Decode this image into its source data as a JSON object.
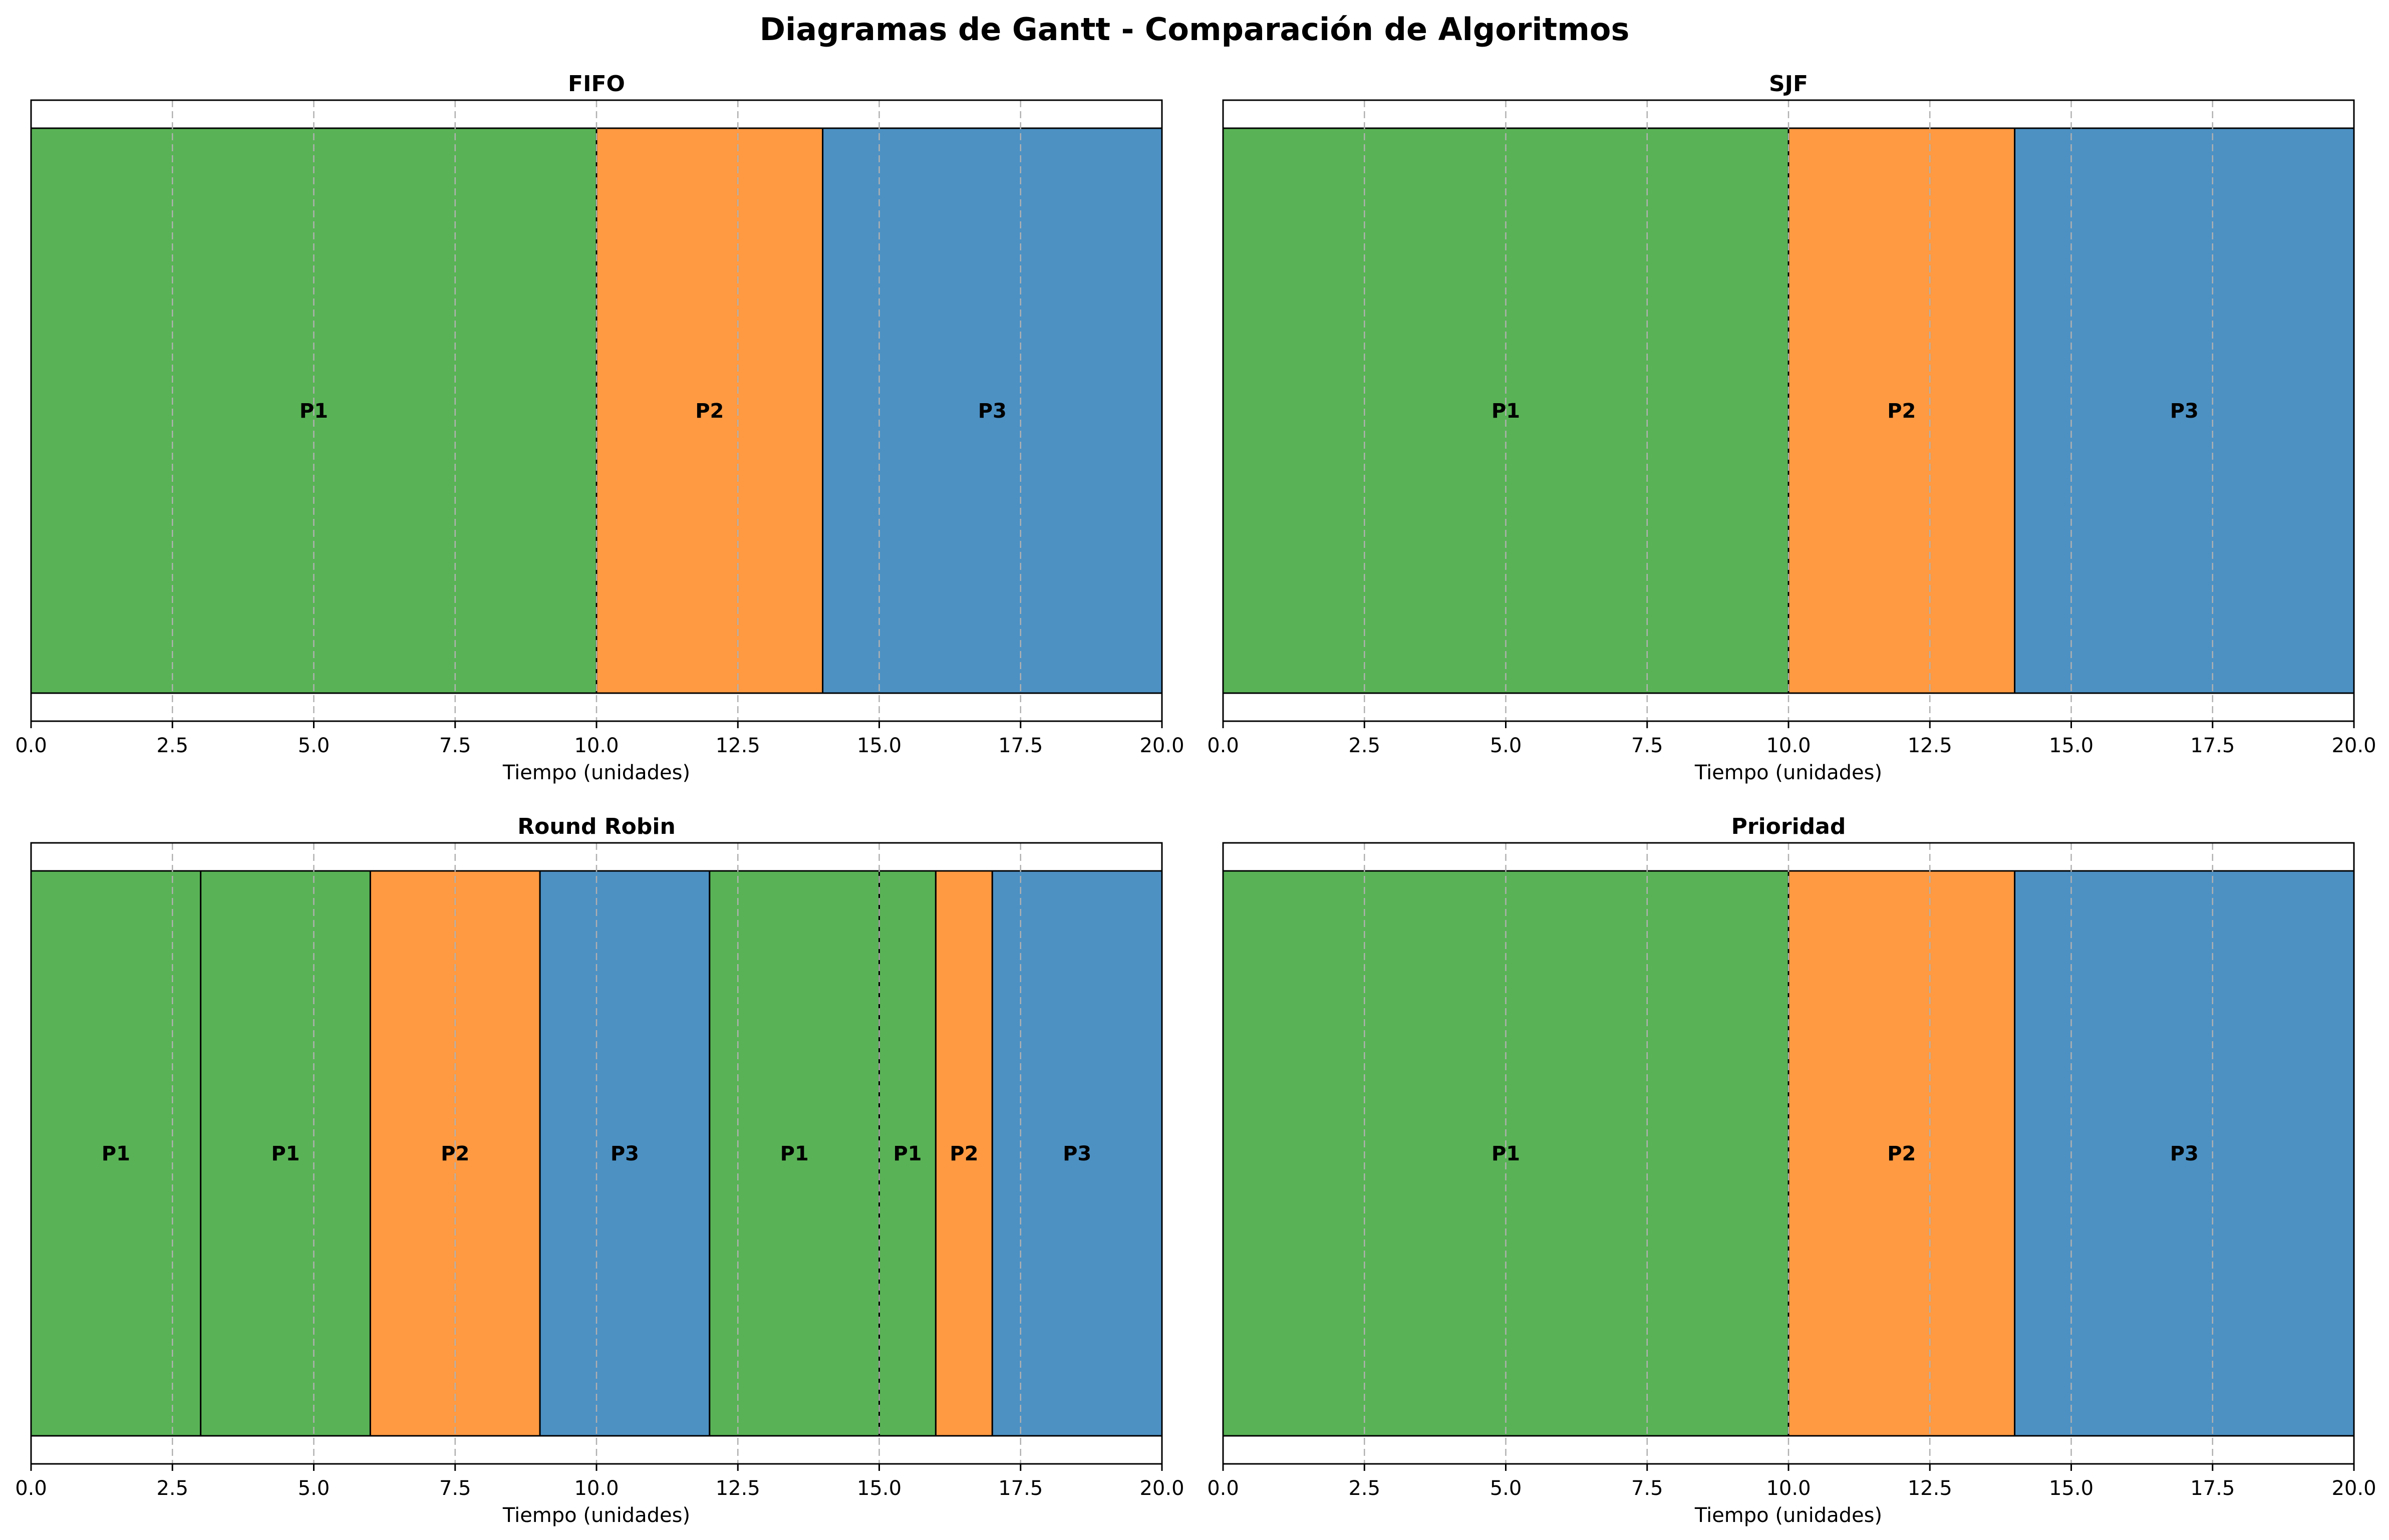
{
  "figure_title": "Diagramas de Gantt - Comparación de Algoritmos",
  "colors": {
    "P1": "#59b356",
    "P2": "#ff9a42",
    "P3": "#4d91c3"
  },
  "chart_data": [
    {
      "type": "bar",
      "orientation": "horizontal-gantt",
      "title": "FIFO",
      "xlabel": "Tiempo (unidades)",
      "ylabel": "",
      "xlim": [
        0,
        20
      ],
      "xticks": [
        "0.0",
        "2.5",
        "5.0",
        "7.5",
        "10.0",
        "12.5",
        "15.0",
        "17.5",
        "20.0"
      ],
      "grid": "x dashed",
      "segments": [
        {
          "process": "P1",
          "start": 0,
          "end": 10
        },
        {
          "process": "P2",
          "start": 10,
          "end": 14
        },
        {
          "process": "P3",
          "start": 14,
          "end": 20
        }
      ]
    },
    {
      "type": "bar",
      "orientation": "horizontal-gantt",
      "title": "SJF",
      "xlabel": "Tiempo (unidades)",
      "ylabel": "",
      "xlim": [
        0,
        20
      ],
      "xticks": [
        "0.0",
        "2.5",
        "5.0",
        "7.5",
        "10.0",
        "12.5",
        "15.0",
        "17.5",
        "20.0"
      ],
      "grid": "x dashed",
      "segments": [
        {
          "process": "P1",
          "start": 0,
          "end": 10
        },
        {
          "process": "P2",
          "start": 10,
          "end": 14
        },
        {
          "process": "P3",
          "start": 14,
          "end": 20
        }
      ]
    },
    {
      "type": "bar",
      "orientation": "horizontal-gantt",
      "title": "Round Robin",
      "xlabel": "Tiempo (unidades)",
      "ylabel": "",
      "xlim": [
        0,
        20
      ],
      "xticks": [
        "0.0",
        "2.5",
        "5.0",
        "7.5",
        "10.0",
        "12.5",
        "15.0",
        "17.5",
        "20.0"
      ],
      "grid": "x dashed",
      "segments": [
        {
          "process": "P1",
          "start": 0,
          "end": 3
        },
        {
          "process": "P1",
          "start": 3,
          "end": 6
        },
        {
          "process": "P2",
          "start": 6,
          "end": 9
        },
        {
          "process": "P3",
          "start": 9,
          "end": 12
        },
        {
          "process": "P1",
          "start": 12,
          "end": 15
        },
        {
          "process": "P1",
          "start": 15,
          "end": 16
        },
        {
          "process": "P2",
          "start": 16,
          "end": 17
        },
        {
          "process": "P3",
          "start": 17,
          "end": 20
        }
      ]
    },
    {
      "type": "bar",
      "orientation": "horizontal-gantt",
      "title": "Prioridad",
      "xlabel": "Tiempo (unidades)",
      "ylabel": "",
      "xlim": [
        0,
        20
      ],
      "xticks": [
        "0.0",
        "2.5",
        "5.0",
        "7.5",
        "10.0",
        "12.5",
        "15.0",
        "17.5",
        "20.0"
      ],
      "grid": "x dashed",
      "segments": [
        {
          "process": "P1",
          "start": 0,
          "end": 10
        },
        {
          "process": "P2",
          "start": 10,
          "end": 14
        },
        {
          "process": "P3",
          "start": 14,
          "end": 20
        }
      ]
    }
  ]
}
